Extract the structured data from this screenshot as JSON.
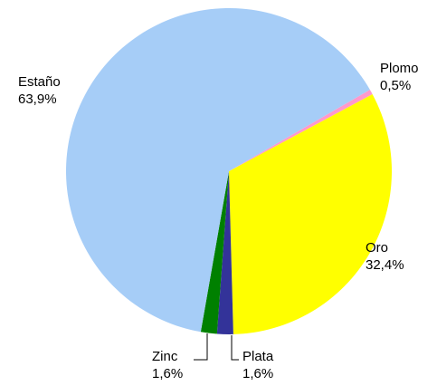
{
  "chart_data": {
    "type": "pie",
    "categories": [
      "Plomo",
      "Oro",
      "Plata",
      "Zinc",
      "Estaño"
    ],
    "values": [
      0.5,
      32.4,
      1.6,
      1.6,
      63.9
    ],
    "value_labels": [
      "0,5%",
      "32,4%",
      "1,6%",
      "1,6%",
      "63,9%"
    ],
    "colors": [
      "#ff99cc",
      "#ffff00",
      "#333399",
      "#008000",
      "#a6cdf7"
    ]
  }
}
